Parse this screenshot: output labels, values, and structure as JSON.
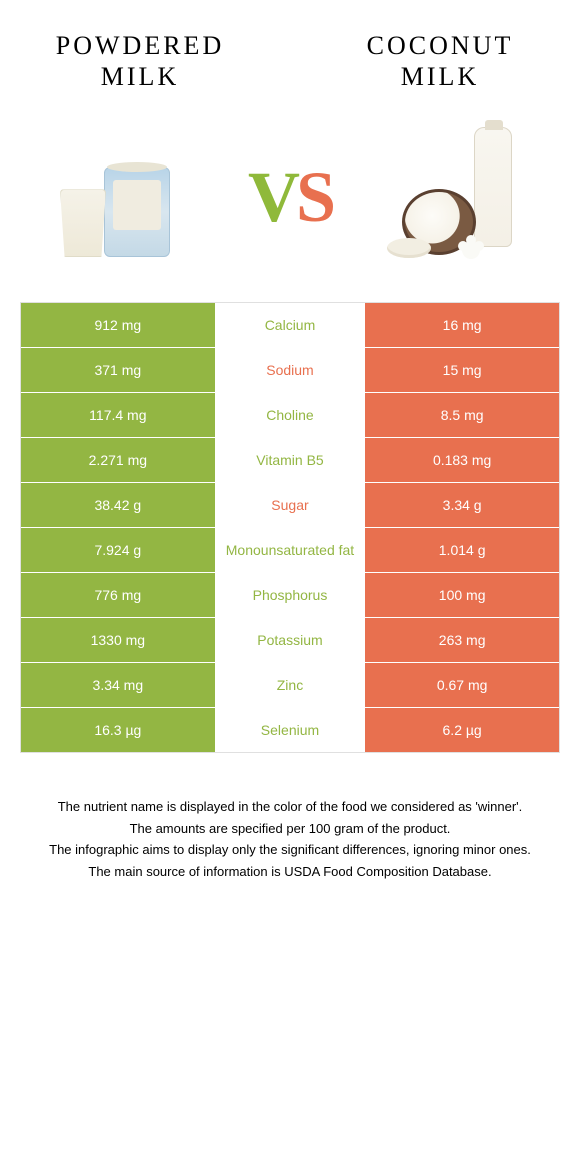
{
  "left_title": "POWDERED MILK",
  "right_title": "COCONUT MILK",
  "vs": {
    "v": "V",
    "s": "S"
  },
  "colors": {
    "left_bg": "#93b643",
    "right_bg": "#e8704f",
    "left_text": "#93b643",
    "right_text": "#e8704f"
  },
  "rows": [
    {
      "left": "912 mg",
      "label": "Calcium",
      "right": "16 mg",
      "winner": "left"
    },
    {
      "left": "371 mg",
      "label": "Sodium",
      "right": "15 mg",
      "winner": "right"
    },
    {
      "left": "117.4 mg",
      "label": "Choline",
      "right": "8.5 mg",
      "winner": "left"
    },
    {
      "left": "2.271 mg",
      "label": "Vitamin B5",
      "right": "0.183 mg",
      "winner": "left"
    },
    {
      "left": "38.42 g",
      "label": "Sugar",
      "right": "3.34 g",
      "winner": "right"
    },
    {
      "left": "7.924 g",
      "label": "Monounsaturated fat",
      "right": "1.014 g",
      "winner": "left"
    },
    {
      "left": "776 mg",
      "label": "Phosphorus",
      "right": "100 mg",
      "winner": "left"
    },
    {
      "left": "1330 mg",
      "label": "Potassium",
      "right": "263 mg",
      "winner": "left"
    },
    {
      "left": "3.34 mg",
      "label": "Zinc",
      "right": "0.67 mg",
      "winner": "left"
    },
    {
      "left": "16.3 µg",
      "label": "Selenium",
      "right": "6.2 µg",
      "winner": "left"
    }
  ],
  "footnotes": [
    "The nutrient name is displayed in the color of the food we considered as 'winner'.",
    "The amounts are specified per 100 gram of the product.",
    "The infographic aims to display only the significant differences, ignoring minor ones.",
    "The main source of information is USDA Food Composition Database."
  ]
}
